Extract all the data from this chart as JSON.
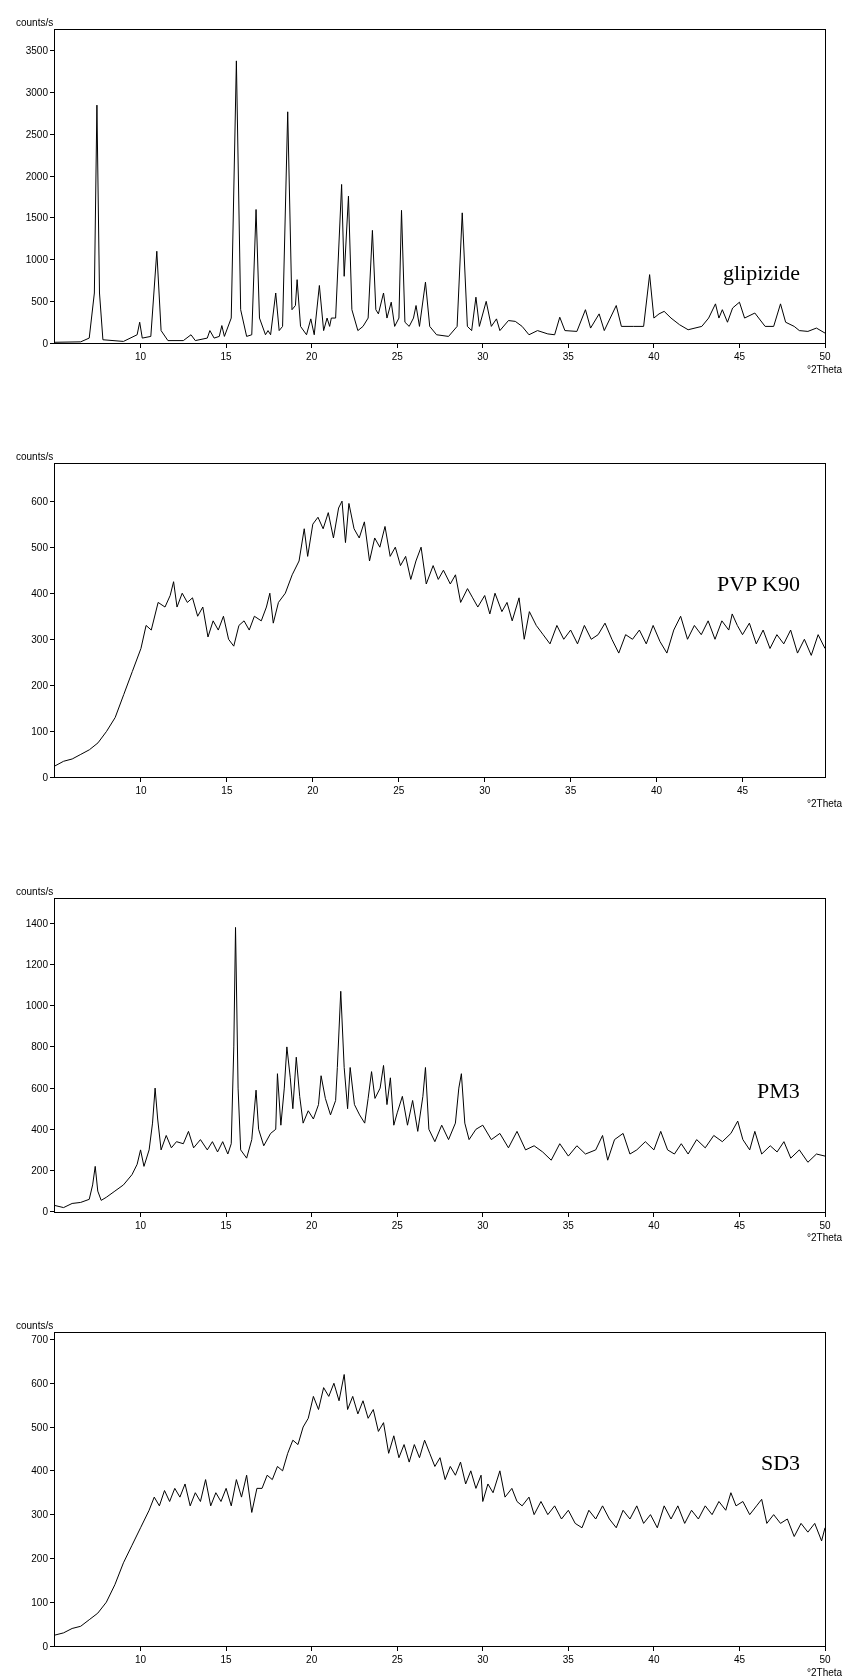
{
  "chart_data": [
    {
      "type": "line",
      "xlabel": "°2Theta",
      "ylabel": "counts/s",
      "xlim": [
        5,
        50
      ],
      "ylim": [
        0,
        3750
      ],
      "xticks": [
        10,
        15,
        20,
        25,
        30,
        35,
        40,
        45,
        50
      ],
      "yticks": [
        0,
        500,
        1000,
        1500,
        2000,
        2500,
        3000,
        3500
      ],
      "grid": false,
      "series": [
        {
          "name": "glipizide",
          "color": "#000000",
          "x": [
            5.0,
            6.5,
            7.0,
            7.3,
            7.45,
            7.6,
            7.8,
            9.0,
            9.8,
            9.95,
            10.1,
            10.6,
            10.95,
            11.2,
            11.6,
            12.5,
            12.95,
            13.2,
            13.9,
            14.05,
            14.3,
            14.6,
            14.75,
            14.9,
            15.3,
            15.6,
            15.85,
            16.2,
            16.5,
            16.75,
            16.95,
            17.3,
            17.45,
            17.6,
            17.9,
            18.1,
            18.3,
            18.6,
            18.85,
            19.05,
            19.15,
            19.35,
            19.7,
            19.95,
            20.15,
            20.45,
            20.7,
            20.9,
            21.05,
            21.15,
            21.4,
            21.75,
            21.9,
            22.15,
            22.35,
            22.7,
            23.0,
            23.3,
            23.55,
            23.75,
            23.9,
            24.2,
            24.4,
            24.65,
            24.85,
            25.1,
            25.25,
            25.45,
            25.7,
            25.95,
            26.1,
            26.3,
            26.65,
            26.9,
            27.3,
            28.0,
            28.5,
            28.8,
            29.1,
            29.35,
            29.6,
            29.8,
            30.2,
            30.5,
            30.8,
            31.0,
            31.5,
            31.9,
            32.3,
            32.7,
            33.2,
            33.8,
            34.2,
            34.5,
            34.8,
            35.5,
            36.0,
            36.3,
            36.8,
            37.1,
            37.8,
            38.1,
            38.8,
            39.4,
            39.75,
            40.0,
            40.3,
            40.6,
            41.0,
            41.5,
            42.0,
            42.8,
            43.2,
            43.6,
            43.8,
            44.0,
            44.3,
            44.6,
            45.0,
            45.3,
            45.9,
            46.5,
            47.0,
            47.4,
            47.7,
            48.2,
            48.5,
            49.0,
            49.5,
            50.0
          ],
          "values": [
            10,
            15,
            60,
            600,
            2850,
            600,
            40,
            20,
            100,
            250,
            60,
            80,
            1100,
            150,
            30,
            30,
            100,
            30,
            60,
            150,
            60,
            80,
            210,
            80,
            300,
            3380,
            400,
            80,
            100,
            1600,
            300,
            100,
            150,
            100,
            600,
            150,
            200,
            2770,
            400,
            450,
            760,
            200,
            100,
            290,
            100,
            690,
            150,
            300,
            200,
            300,
            300,
            1900,
            800,
            1760,
            400,
            150,
            200,
            300,
            1350,
            400,
            350,
            600,
            300,
            490,
            200,
            300,
            1590,
            250,
            200,
            300,
            450,
            200,
            730,
            200,
            100,
            80,
            200,
            1560,
            200,
            150,
            550,
            200,
            500,
            200,
            290,
            150,
            270,
            260,
            200,
            100,
            150,
            110,
            100,
            310,
            150,
            140,
            400,
            180,
            350,
            150,
            450,
            200,
            200,
            200,
            820,
            300,
            350,
            380,
            300,
            220,
            160,
            200,
            300,
            470,
            300,
            400,
            250,
            420,
            490,
            300,
            360,
            200,
            200,
            470,
            250,
            200,
            150,
            140,
            180,
            120
          ]
        }
      ]
    },
    {
      "type": "line",
      "xlabel": "°2Theta",
      "ylabel": "counts/s",
      "xlim": [
        5,
        49.8
      ],
      "ylim": [
        0,
        680
      ],
      "xticks": [
        10,
        15,
        20,
        25,
        30,
        35,
        40,
        45
      ],
      "yticks": [
        0,
        100,
        200,
        300,
        400,
        500,
        600
      ],
      "grid": false,
      "series": [
        {
          "name": "PVP K90",
          "color": "#000000",
          "x": [
            5.0,
            5.5,
            6.0,
            6.5,
            7.0,
            7.5,
            8.0,
            8.5,
            9.0,
            9.5,
            10.0,
            10.3,
            10.6,
            11.0,
            11.4,
            11.7,
            11.9,
            12.1,
            12.4,
            12.7,
            13.0,
            13.3,
            13.6,
            13.9,
            14.2,
            14.5,
            14.8,
            15.1,
            15.4,
            15.7,
            16.0,
            16.3,
            16.6,
            17.0,
            17.3,
            17.5,
            17.7,
            18.0,
            18.4,
            18.8,
            19.2,
            19.5,
            19.7,
            20.0,
            20.3,
            20.6,
            20.9,
            21.2,
            21.5,
            21.7,
            21.9,
            22.1,
            22.4,
            22.7,
            23.0,
            23.3,
            23.6,
            23.9,
            24.2,
            24.5,
            24.8,
            25.1,
            25.4,
            25.7,
            26.0,
            26.3,
            26.6,
            27.0,
            27.3,
            27.6,
            28.0,
            28.3,
            28.6,
            29.0,
            29.3,
            29.6,
            30.0,
            30.3,
            30.6,
            31.0,
            31.3,
            31.6,
            32.0,
            32.3,
            32.6,
            33.0,
            33.4,
            33.8,
            34.2,
            34.6,
            35.0,
            35.4,
            35.8,
            36.2,
            36.6,
            37.0,
            37.4,
            37.8,
            38.2,
            38.6,
            39.0,
            39.4,
            39.8,
            40.2,
            40.6,
            41.0,
            41.4,
            41.8,
            42.2,
            42.6,
            43.0,
            43.4,
            43.8,
            44.2,
            44.4,
            44.7,
            45.0,
            45.4,
            45.8,
            46.2,
            46.6,
            47.0,
            47.4,
            47.8,
            48.2,
            48.6,
            49.0,
            49.4,
            49.8
          ],
          "values": [
            25,
            35,
            40,
            50,
            60,
            75,
            100,
            130,
            180,
            230,
            280,
            330,
            320,
            380,
            370,
            395,
            425,
            370,
            400,
            380,
            390,
            350,
            370,
            305,
            340,
            320,
            350,
            300,
            285,
            330,
            340,
            320,
            350,
            340,
            370,
            400,
            335,
            380,
            400,
            440,
            470,
            540,
            480,
            550,
            565,
            540,
            575,
            520,
            585,
            600,
            510,
            595,
            540,
            520,
            555,
            470,
            520,
            500,
            545,
            480,
            500,
            460,
            480,
            430,
            470,
            500,
            420,
            460,
            430,
            450,
            420,
            440,
            380,
            410,
            390,
            370,
            395,
            355,
            400,
            360,
            380,
            340,
            390,
            300,
            360,
            330,
            310,
            290,
            330,
            300,
            320,
            290,
            330,
            300,
            310,
            335,
            300,
            270,
            310,
            300,
            320,
            290,
            330,
            295,
            270,
            320,
            350,
            300,
            330,
            310,
            340,
            300,
            340,
            320,
            355,
            330,
            310,
            335,
            290,
            320,
            280,
            310,
            290,
            320,
            270,
            300,
            265,
            310,
            280
          ]
        }
      ]
    },
    {
      "type": "line",
      "xlabel": "°2Theta",
      "ylabel": "counts/s",
      "xlim": [
        5,
        50
      ],
      "ylim": [
        0,
        1520
      ],
      "xticks": [
        10,
        15,
        20,
        25,
        30,
        35,
        40,
        45,
        50
      ],
      "yticks": [
        0,
        200,
        400,
        600,
        800,
        1000,
        1200,
        1400
      ],
      "grid": false,
      "series": [
        {
          "name": "PM3",
          "color": "#000000",
          "x": [
            5.0,
            5.5,
            6.0,
            6.5,
            7.0,
            7.2,
            7.35,
            7.5,
            7.7,
            8.0,
            8.5,
            9.0,
            9.5,
            9.8,
            10.0,
            10.2,
            10.5,
            10.7,
            10.85,
            11.0,
            11.2,
            11.5,
            11.8,
            12.1,
            12.5,
            12.8,
            13.1,
            13.5,
            13.9,
            14.2,
            14.5,
            14.8,
            15.1,
            15.3,
            15.45,
            15.55,
            15.7,
            15.85,
            16.2,
            16.5,
            16.75,
            16.9,
            17.2,
            17.6,
            17.9,
            18.0,
            18.2,
            18.4,
            18.55,
            18.75,
            18.9,
            19.1,
            19.3,
            19.5,
            19.8,
            20.1,
            20.4,
            20.55,
            20.8,
            21.1,
            21.4,
            21.5,
            21.7,
            21.9,
            22.1,
            22.25,
            22.5,
            22.8,
            23.1,
            23.3,
            23.5,
            23.7,
            24.0,
            24.2,
            24.4,
            24.6,
            24.8,
            25.0,
            25.3,
            25.6,
            25.9,
            26.2,
            26.5,
            26.65,
            26.85,
            27.2,
            27.6,
            28.0,
            28.4,
            28.6,
            28.75,
            28.95,
            29.2,
            29.6,
            30.0,
            30.5,
            31.0,
            31.5,
            32.0,
            32.5,
            33.0,
            33.5,
            34.0,
            34.5,
            35.0,
            35.5,
            36.0,
            36.6,
            37.0,
            37.3,
            37.7,
            38.2,
            38.6,
            39.0,
            39.5,
            40.0,
            40.4,
            40.8,
            41.2,
            41.6,
            42.0,
            42.5,
            43.0,
            43.5,
            44.0,
            44.5,
            44.9,
            45.2,
            45.6,
            45.9,
            46.3,
            46.8,
            47.2,
            47.6,
            48.0,
            48.5,
            49.0,
            49.5,
            50.0
          ],
          "values": [
            30,
            20,
            40,
            45,
            60,
            130,
            220,
            100,
            55,
            70,
            100,
            130,
            180,
            230,
            300,
            220,
            300,
            430,
            600,
            450,
            300,
            370,
            310,
            340,
            330,
            390,
            310,
            350,
            300,
            340,
            290,
            340,
            280,
            330,
            800,
            1380,
            600,
            300,
            260,
            350,
            590,
            400,
            320,
            380,
            400,
            670,
            420,
            600,
            800,
            650,
            500,
            750,
            560,
            430,
            490,
            450,
            520,
            660,
            550,
            470,
            540,
            700,
            1070,
            700,
            500,
            700,
            520,
            470,
            430,
            550,
            680,
            550,
            600,
            710,
            520,
            650,
            420,
            480,
            560,
            420,
            540,
            390,
            560,
            700,
            400,
            340,
            420,
            350,
            430,
            600,
            670,
            430,
            350,
            400,
            420,
            350,
            380,
            310,
            390,
            300,
            320,
            290,
            250,
            330,
            270,
            320,
            280,
            300,
            370,
            250,
            350,
            380,
            280,
            300,
            340,
            300,
            390,
            300,
            280,
            330,
            280,
            350,
            310,
            370,
            340,
            380,
            440,
            350,
            300,
            390,
            280,
            320,
            290,
            340,
            260,
            300,
            240,
            280,
            270
          ]
        }
      ]
    },
    {
      "type": "line",
      "xlabel": "°2Theta",
      "ylabel": "counts/s",
      "xlim": [
        5,
        50
      ],
      "ylim": [
        0,
        715
      ],
      "xticks": [
        10,
        15,
        20,
        25,
        30,
        35,
        40,
        45,
        50
      ],
      "yticks": [
        0,
        100,
        200,
        300,
        400,
        500,
        600,
        700
      ],
      "grid": false,
      "series": [
        {
          "name": "SD3",
          "color": "#000000",
          "x": [
            5.0,
            5.5,
            6.0,
            6.5,
            7.0,
            7.5,
            8.0,
            8.5,
            9.0,
            9.5,
            10.0,
            10.5,
            10.8,
            11.1,
            11.4,
            11.7,
            12.0,
            12.3,
            12.6,
            12.9,
            13.2,
            13.5,
            13.8,
            14.1,
            14.4,
            14.7,
            15.0,
            15.3,
            15.6,
            15.9,
            16.2,
            16.5,
            16.8,
            17.1,
            17.4,
            17.7,
            18.0,
            18.3,
            18.6,
            18.9,
            19.2,
            19.5,
            19.8,
            20.1,
            20.4,
            20.7,
            21.0,
            21.3,
            21.6,
            21.9,
            22.1,
            22.4,
            22.7,
            23.0,
            23.3,
            23.6,
            23.9,
            24.2,
            24.5,
            24.8,
            25.1,
            25.4,
            25.7,
            26.0,
            26.3,
            26.6,
            26.9,
            27.2,
            27.5,
            27.8,
            28.1,
            28.4,
            28.7,
            29.0,
            29.3,
            29.6,
            29.9,
            30.0,
            30.3,
            30.6,
            31.0,
            31.3,
            31.7,
            32.0,
            32.3,
            32.7,
            33.0,
            33.4,
            33.8,
            34.2,
            34.6,
            35.0,
            35.4,
            35.8,
            36.2,
            36.6,
            37.0,
            37.4,
            37.8,
            38.2,
            38.6,
            39.0,
            39.4,
            39.8,
            40.2,
            40.6,
            41.0,
            41.4,
            41.8,
            42.2,
            42.6,
            43.0,
            43.4,
            43.8,
            44.2,
            44.5,
            44.8,
            45.2,
            45.6,
            46.0,
            46.3,
            46.6,
            47.0,
            47.4,
            47.8,
            48.2,
            48.6,
            49.0,
            49.4,
            49.8,
            50.0
          ],
          "values": [
            25,
            30,
            40,
            45,
            60,
            75,
            100,
            140,
            190,
            230,
            270,
            310,
            340,
            320,
            355,
            330,
            360,
            340,
            370,
            320,
            350,
            330,
            380,
            320,
            350,
            330,
            360,
            320,
            380,
            340,
            390,
            305,
            360,
            360,
            390,
            380,
            410,
            400,
            440,
            470,
            460,
            500,
            520,
            570,
            540,
            590,
            570,
            600,
            560,
            620,
            540,
            570,
            530,
            560,
            520,
            540,
            490,
            510,
            440,
            480,
            430,
            460,
            420,
            460,
            430,
            470,
            440,
            410,
            430,
            380,
            410,
            390,
            420,
            370,
            400,
            360,
            390,
            330,
            370,
            350,
            400,
            340,
            360,
            330,
            320,
            340,
            300,
            330,
            300,
            320,
            290,
            310,
            280,
            270,
            310,
            290,
            320,
            290,
            270,
            310,
            290,
            320,
            280,
            300,
            270,
            320,
            290,
            320,
            280,
            310,
            290,
            320,
            300,
            330,
            310,
            350,
            320,
            330,
            300,
            320,
            335,
            280,
            300,
            280,
            290,
            250,
            280,
            260,
            280,
            240,
            270
          ]
        }
      ]
    }
  ]
}
